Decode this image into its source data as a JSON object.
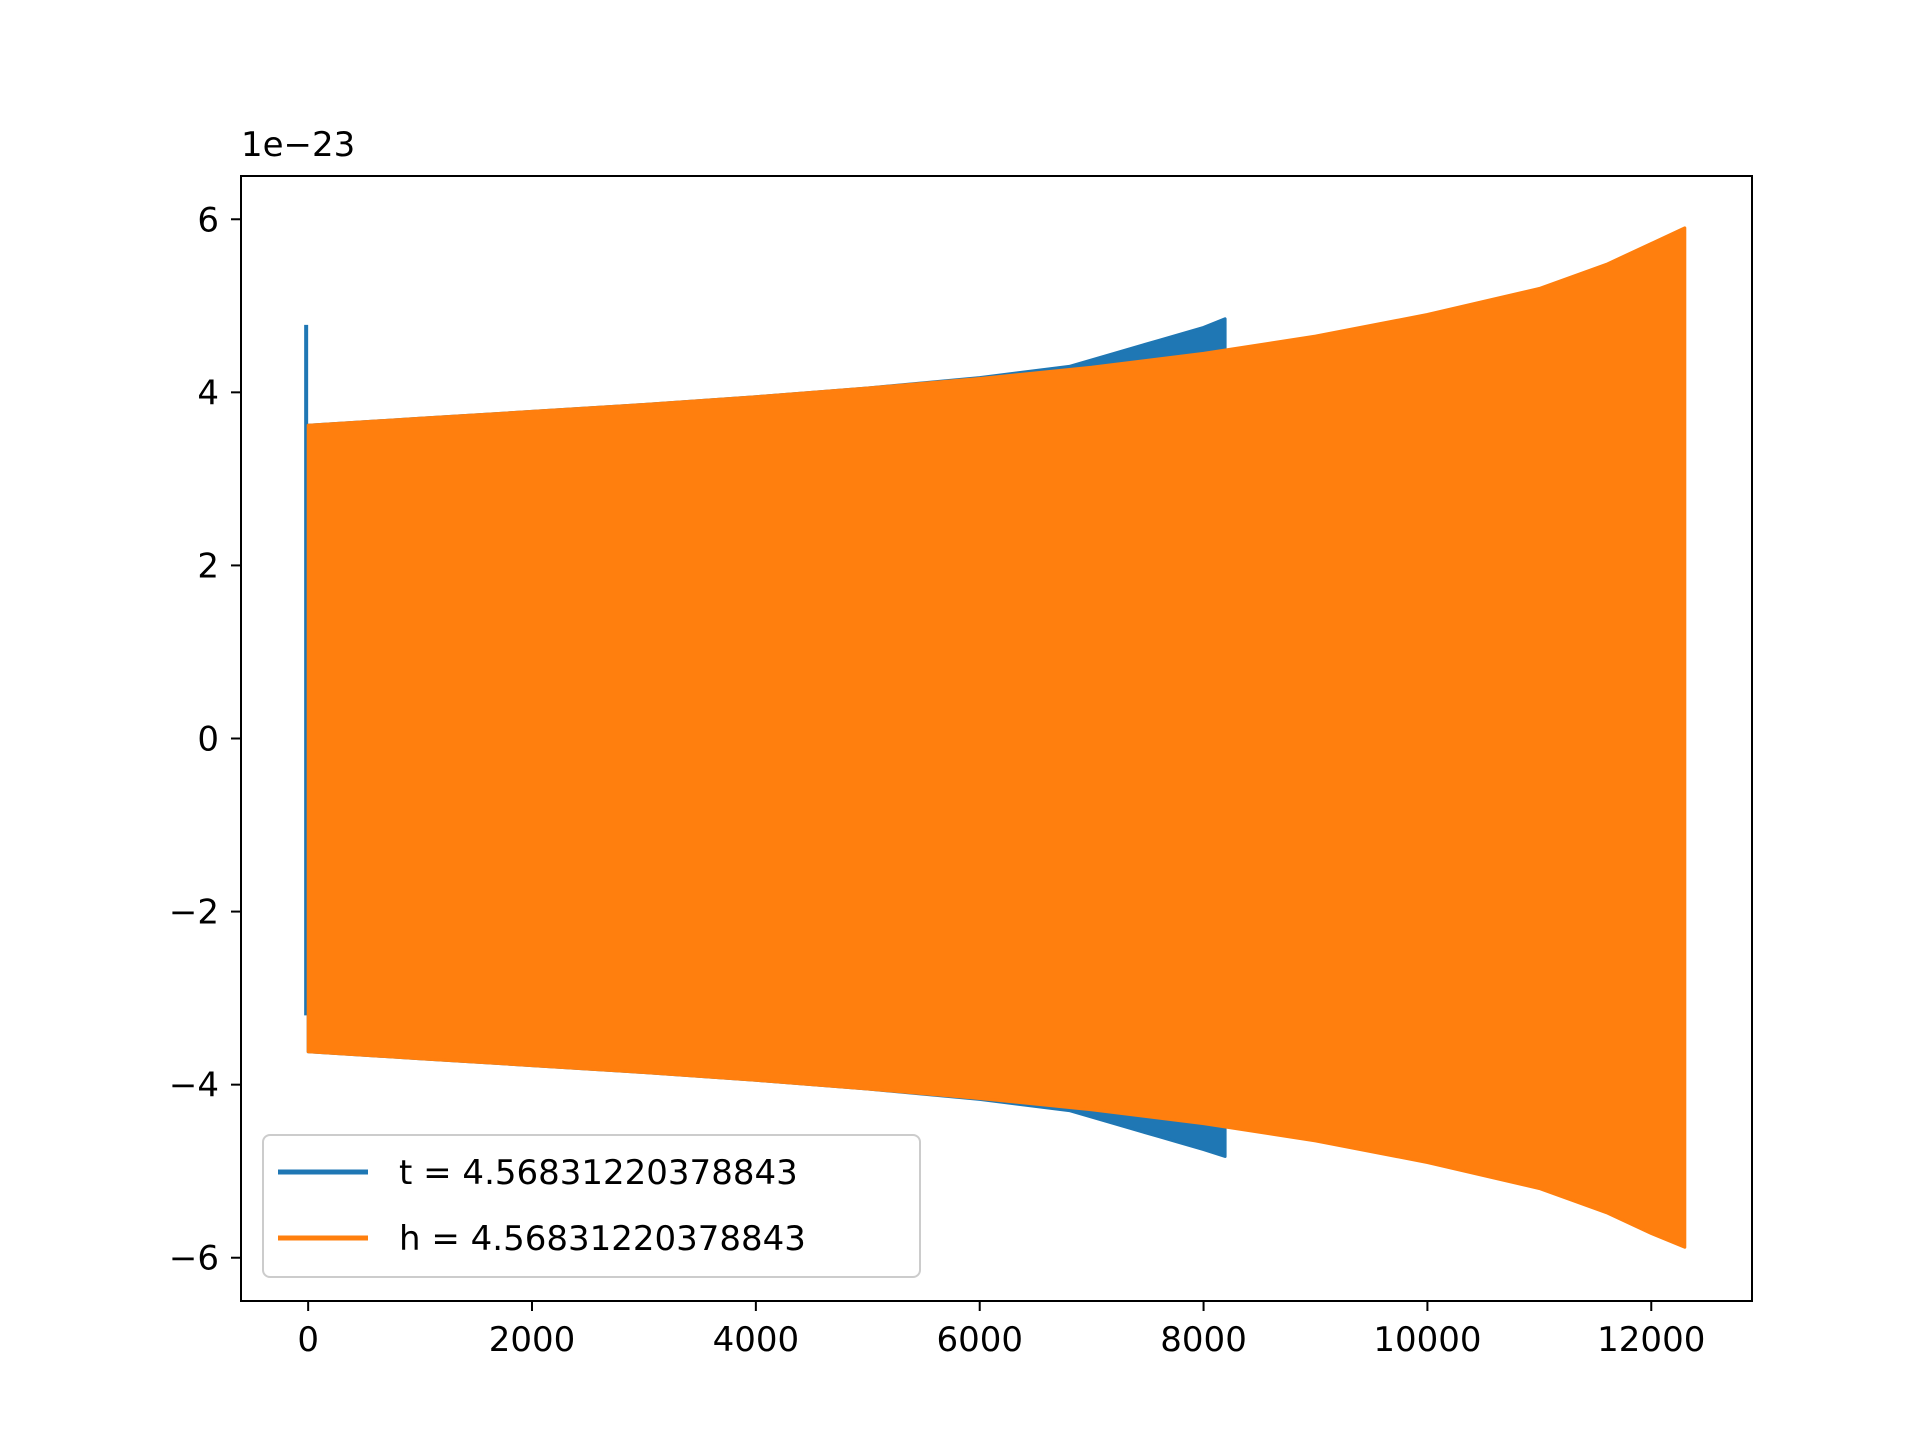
{
  "chart_data": {
    "type": "line",
    "title": "",
    "xlabel": "",
    "ylabel": "",
    "y_offset_text": "1e−23",
    "xlim": [
      -600,
      12900
    ],
    "ylim": [
      -6.5,
      6.5
    ],
    "x_ticks": [
      0,
      2000,
      4000,
      6000,
      8000,
      10000,
      12000
    ],
    "x_tick_labels": [
      "0",
      "2000",
      "4000",
      "6000",
      "8000",
      "10000",
      "12000"
    ],
    "y_ticks": [
      -6,
      -4,
      -2,
      0,
      2,
      4,
      6
    ],
    "y_tick_labels": [
      "−6",
      "−4",
      "−2",
      "0",
      "2",
      "4",
      "6"
    ],
    "grid": false,
    "legend_position": "lower-left",
    "series": [
      {
        "name": "t = 4.56831220378843",
        "color": "#1f77b4",
        "x_range": [
          0,
          8192
        ],
        "spike_at_start": {
          "x": 0,
          "max": 4.78,
          "min": -3.2
        },
        "envelope": [
          {
            "x": 0,
            "upper": 3.62,
            "lower": -3.62
          },
          {
            "x": 1000,
            "upper": 3.7,
            "lower": -3.7
          },
          {
            "x": 2000,
            "upper": 3.78,
            "lower": -3.78
          },
          {
            "x": 3000,
            "upper": 3.86,
            "lower": -3.86
          },
          {
            "x": 4000,
            "upper": 3.95,
            "lower": -3.95
          },
          {
            "x": 5000,
            "upper": 4.05,
            "lower": -4.05
          },
          {
            "x": 6000,
            "upper": 4.17,
            "lower": -4.17
          },
          {
            "x": 6800,
            "upper": 4.3,
            "lower": -4.3
          },
          {
            "x": 7200,
            "upper": 4.45,
            "lower": -4.45
          },
          {
            "x": 7600,
            "upper": 4.6,
            "lower": -4.6
          },
          {
            "x": 8000,
            "upper": 4.75,
            "lower": -4.75
          },
          {
            "x": 8192,
            "upper": 4.85,
            "lower": -4.83
          }
        ]
      },
      {
        "name": "h = 4.56831220378843",
        "color": "#ff7f0e",
        "x_range": [
          0,
          12300
        ],
        "envelope": [
          {
            "x": 0,
            "upper": 3.62,
            "lower": -3.62
          },
          {
            "x": 1000,
            "upper": 3.7,
            "lower": -3.7
          },
          {
            "x": 2000,
            "upper": 3.78,
            "lower": -3.78
          },
          {
            "x": 3000,
            "upper": 3.86,
            "lower": -3.86
          },
          {
            "x": 4000,
            "upper": 3.95,
            "lower": -3.95
          },
          {
            "x": 5000,
            "upper": 4.05,
            "lower": -4.05
          },
          {
            "x": 6000,
            "upper": 4.16,
            "lower": -4.16
          },
          {
            "x": 7000,
            "upper": 4.29,
            "lower": -4.29
          },
          {
            "x": 8000,
            "upper": 4.45,
            "lower": -4.45
          },
          {
            "x": 9000,
            "upper": 4.65,
            "lower": -4.65
          },
          {
            "x": 10000,
            "upper": 4.9,
            "lower": -4.9
          },
          {
            "x": 11000,
            "upper": 5.2,
            "lower": -5.2
          },
          {
            "x": 11600,
            "upper": 5.48,
            "lower": -5.48
          },
          {
            "x": 12000,
            "upper": 5.72,
            "lower": -5.72
          },
          {
            "x": 12300,
            "upper": 5.9,
            "lower": -5.88
          }
        ]
      }
    ]
  }
}
